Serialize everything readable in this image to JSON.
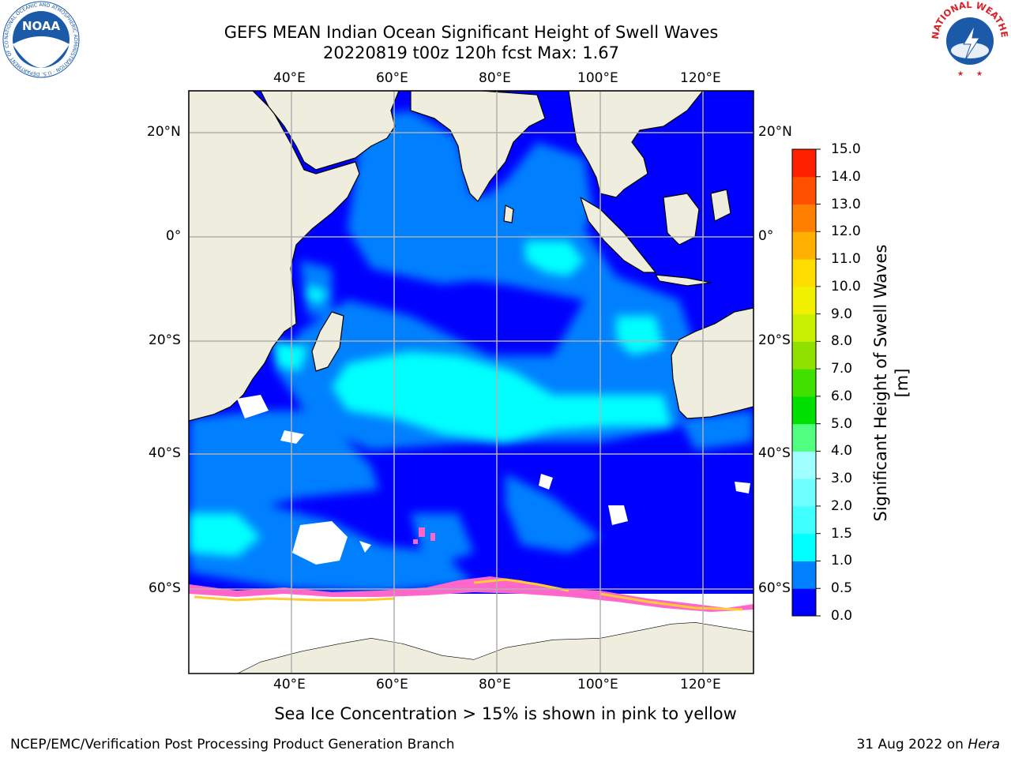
{
  "title": {
    "line1": "GEFS MEAN Indian Ocean Significant Height of Swell Waves",
    "line2": "20220819 t00z 120h fcst   Max: 1.67"
  },
  "logos": {
    "left": {
      "text": "NOAA",
      "ring_text": "NATIONAL OCEANIC AND ATMOSPHERIC ADMINISTRATION · U.S. DEPARTMENT OF COMMERCE",
      "color": "#1a5aa8"
    },
    "right": {
      "ring_text": "NATIONAL WEATHER SERVICE",
      "color": "#1a5aa8",
      "ring_color": "#d8232a"
    }
  },
  "map": {
    "lon_range": [
      20,
      130
    ],
    "lat_range": [
      -72,
      28
    ],
    "lon_ticks": [
      {
        "value": 40,
        "label": "40°E"
      },
      {
        "value": 60,
        "label": "60°E"
      },
      {
        "value": 80,
        "label": "80°E"
      },
      {
        "value": 100,
        "label": "100°E"
      },
      {
        "value": 120,
        "label": "120°E"
      }
    ],
    "lat_ticks": [
      {
        "value": 20,
        "label": "20°N"
      },
      {
        "value": 0,
        "label": "0°"
      },
      {
        "value": -20,
        "label": "20°S"
      },
      {
        "value": -40,
        "label": "40°S"
      },
      {
        "value": -60,
        "label": "60°S"
      }
    ],
    "grid": true,
    "colors": {
      "land": "#efedde",
      "ocean": "#0000ff",
      "grid": "#b0b0b0",
      "coast": "#000000",
      "ice": "#ffffff"
    }
  },
  "colorbar": {
    "label": "Significant Height of Swell Waves [m]",
    "ticks": [
      "0.0",
      "0.5",
      "1.0",
      "1.5",
      "2.0",
      "3.0",
      "4.0",
      "5.0",
      "6.0",
      "7.0",
      "8.0",
      "9.0",
      "10.0",
      "11.0",
      "12.0",
      "13.0",
      "14.0",
      "15.0"
    ],
    "colors": [
      "#0000ff",
      "#0080ff",
      "#00ffff",
      "#40ffff",
      "#70ffff",
      "#a0ffff",
      "#50ff80",
      "#00e000",
      "#40e000",
      "#90e000",
      "#c8f000",
      "#f0f000",
      "#ffdd00",
      "#ffb000",
      "#ff8000",
      "#ff5000",
      "#ff2000"
    ]
  },
  "caption": "Sea Ice Concentration > 15% is shown in pink to yellow",
  "footer": {
    "left": "NCEP/EMC/Verification Post Processing Product Generation Branch",
    "right_date": "31 Aug 2022 on",
    "right_host": "Hera"
  }
}
